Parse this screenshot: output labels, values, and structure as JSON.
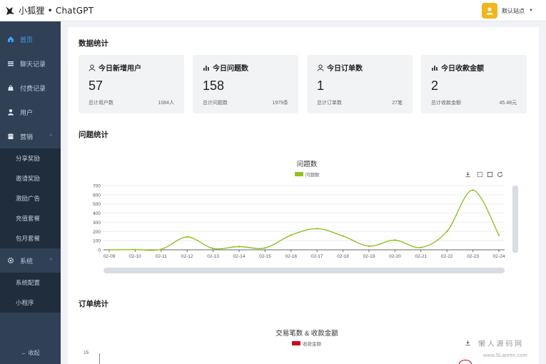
{
  "app": {
    "logo_small": "小狐狸",
    "logo_dot": "•",
    "logo_name": "ChatGPT"
  },
  "header": {
    "user_name": "默认站点",
    "caret": "▼"
  },
  "sidebar": {
    "items": [
      {
        "label": "首页",
        "icon": "home-icon",
        "active": true
      },
      {
        "label": "聊天记录",
        "icon": "list-icon"
      },
      {
        "label": "付费记录",
        "icon": "bag-icon"
      },
      {
        "label": "用户",
        "icon": "user-icon"
      },
      {
        "label": "营销",
        "icon": "shop-icon",
        "arrow": "^"
      }
    ],
    "marketing_sub": [
      "分享奖励",
      "邀请奖励",
      "激励广告",
      "充值套餐",
      "包月套餐"
    ],
    "system": {
      "label": "系统",
      "icon": "gear-icon",
      "arrow": "^"
    },
    "system_sub": [
      "系统配置",
      "小程序"
    ],
    "collapse_label": "← 收起"
  },
  "stats": {
    "section_title": "数据统计",
    "cards": [
      {
        "title": "今日新增用户",
        "icon": "user-icon",
        "value": "57",
        "foot_label": "总计用户数",
        "foot_value": "1084人"
      },
      {
        "title": "今日问题数",
        "icon": "bar-chart-icon",
        "value": "158",
        "foot_label": "总计问题数",
        "foot_value": "1979条"
      },
      {
        "title": "今日订单数",
        "icon": "user-icon",
        "value": "1",
        "foot_label": "总计订单数",
        "foot_value": "27笔"
      },
      {
        "title": "今日收款金额",
        "icon": "bar-chart-icon",
        "value": "2",
        "foot_label": "总计收款金额",
        "foot_value": "45.48元"
      }
    ]
  },
  "questions": {
    "section_title": "问题统计"
  },
  "orders": {
    "section_title": "订单统计"
  },
  "chart_data": [
    {
      "type": "line",
      "title": "问题数",
      "categories": [
        "02-09",
        "02-10",
        "02-11",
        "02-12",
        "02-13",
        "02-14",
        "02-15",
        "02-16",
        "02-17",
        "02-18",
        "02-19",
        "02-20",
        "02-21",
        "02-22",
        "02-23",
        "02-24"
      ],
      "series": [
        {
          "name": "问题数",
          "values": [
            0,
            2,
            5,
            140,
            15,
            35,
            20,
            160,
            230,
            150,
            40,
            105,
            25,
            200,
            650,
            160
          ],
          "color": "#8fc31f"
        }
      ],
      "ylim": [
        0,
        700
      ],
      "yticks": [
        0,
        100,
        200,
        300,
        400,
        500,
        600,
        700
      ],
      "grid": true,
      "legend": "top-center"
    },
    {
      "type": "bar",
      "title": "交易笔数 & 收款金额",
      "series": [
        {
          "name": "收款金额",
          "color": "#d0021b"
        }
      ],
      "yticks": [
        15
      ],
      "legend": "top-center"
    }
  ],
  "watermark": {
    "main": "懒 人 源 码 网",
    "url": "www.5Lanren.com"
  }
}
